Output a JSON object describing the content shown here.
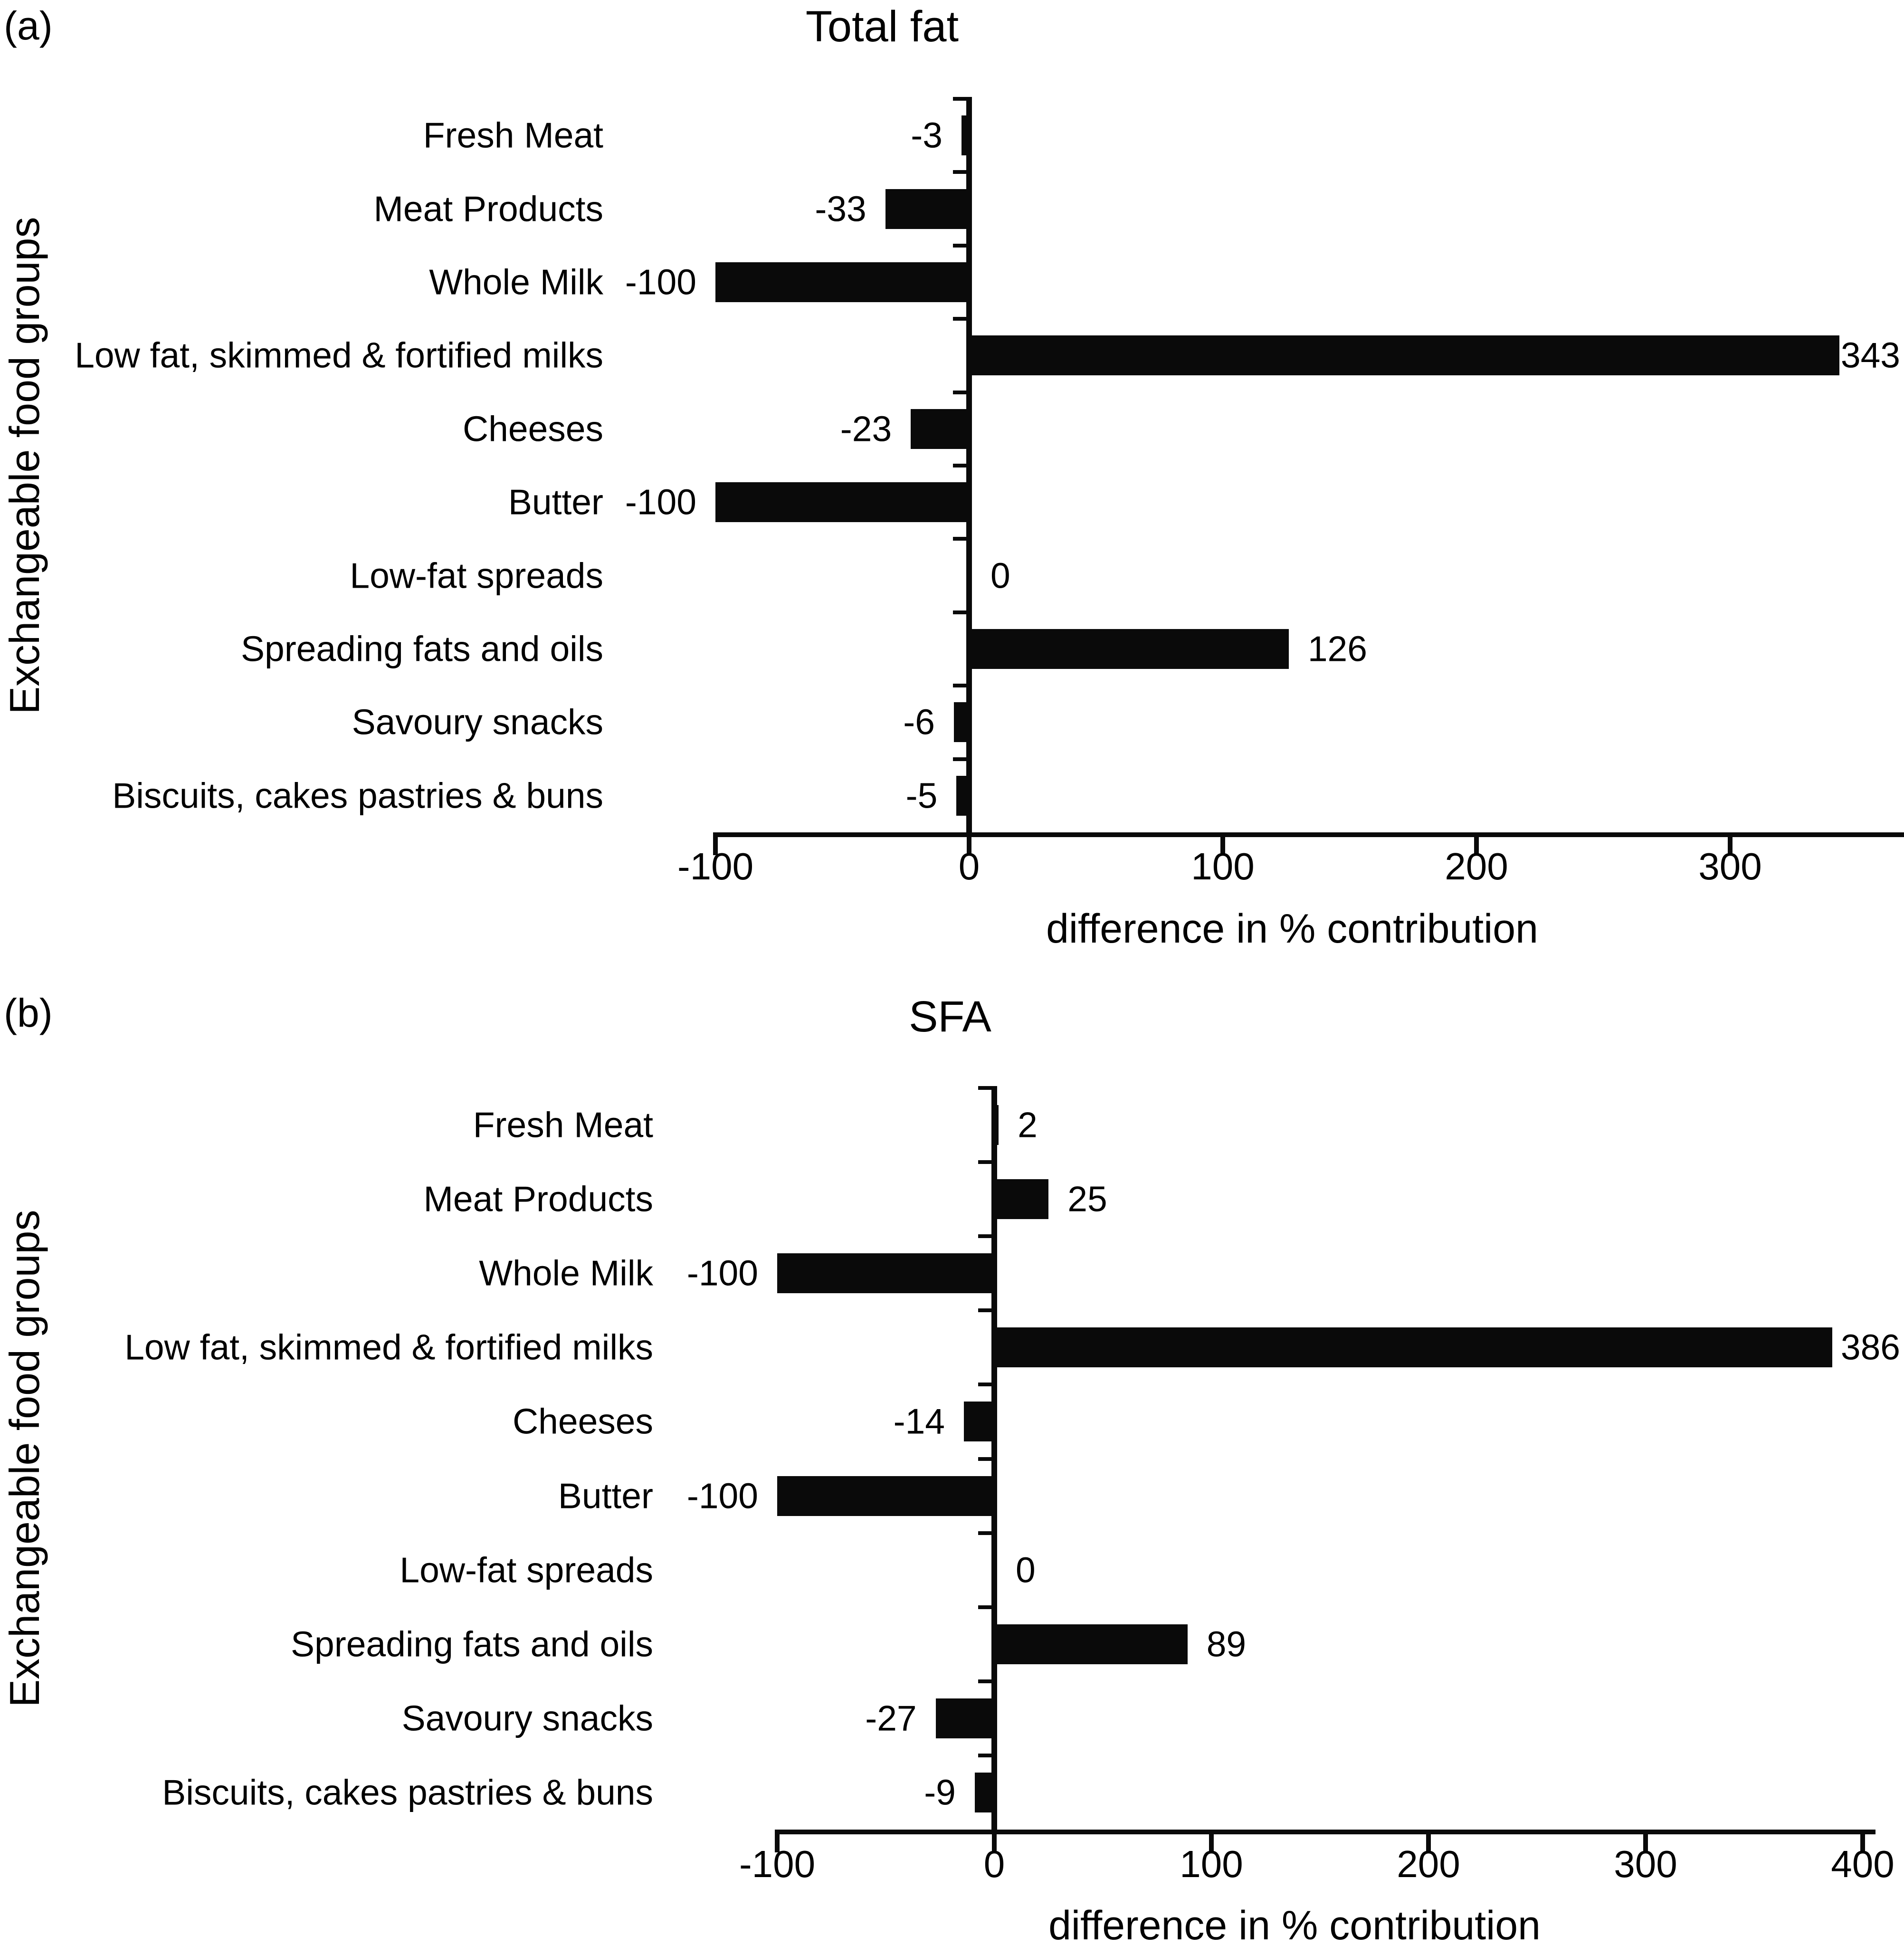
{
  "figure": {
    "background": "#ffffff",
    "bar_color": "#0a0a0a",
    "text_color": "#000000"
  },
  "chart_data": [
    {
      "type": "bar",
      "orientation": "horizontal",
      "panel_letter": "(a)",
      "title": "Total fat",
      "ylabel": "Exchangeable food groups",
      "xlabel": "difference in % contribution",
      "categories": [
        "Fresh Meat",
        "Meat Products",
        "Whole Milk",
        "Low fat, skimmed & fortified milks",
        "Cheeses",
        "Butter",
        "Low-fat spreads",
        "Spreading fats and oils",
        "Savoury snacks",
        "Biscuits, cakes pastries & buns"
      ],
      "values": [
        -3,
        -33,
        -100,
        343,
        -23,
        -100,
        0,
        126,
        -6,
        -5
      ],
      "value_labels": [
        "-3",
        "-33",
        "-100",
        "343",
        "-23",
        "-100",
        "0",
        "126",
        "-6",
        "-5"
      ],
      "xticks": [
        -100,
        0,
        100,
        200,
        300
      ],
      "xtick_labels": [
        "-100",
        "0",
        "100",
        "200",
        "300"
      ],
      "xlim": [
        -100,
        368
      ],
      "grid": false,
      "legend": "none"
    },
    {
      "type": "bar",
      "orientation": "horizontal",
      "panel_letter": "(b)",
      "title": "SFA",
      "ylabel": "Exchangeable food groups",
      "xlabel": "difference in % contribution",
      "categories": [
        "Fresh Meat",
        "Meat Products",
        "Whole Milk",
        "Low fat, skimmed & fortified milks",
        "Cheeses",
        "Butter",
        "Low-fat spreads",
        "Spreading fats and oils",
        "Savoury snacks",
        "Biscuits, cakes pastries & buns"
      ],
      "values": [
        2,
        25,
        -100,
        386,
        -14,
        -100,
        0,
        89,
        -27,
        -9
      ],
      "value_labels": [
        "2",
        "25",
        "-100",
        "386",
        "-14",
        "-100",
        "0",
        "89",
        "-27",
        "-9"
      ],
      "xticks": [
        -100,
        0,
        100,
        200,
        300,
        400
      ],
      "xtick_labels": [
        "-100",
        "0",
        "100",
        "200",
        "300",
        "400"
      ],
      "xlim": [
        -100,
        404
      ],
      "grid": false,
      "legend": "none"
    }
  ]
}
